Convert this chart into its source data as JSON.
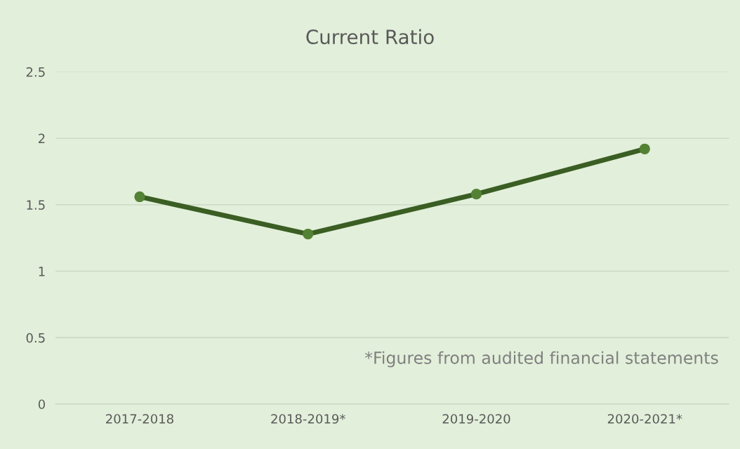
{
  "chart_data": {
    "type": "line",
    "title": "Current Ratio",
    "categories": [
      "2017-2018",
      "2018-2019*",
      "2019-2020",
      "2020-2021*"
    ],
    "series": [
      {
        "color": "#3a5e23",
        "values": [
          1.56,
          1.28,
          1.58,
          1.92
        ]
      }
    ],
    "marker": "circle",
    "line_style": "solid",
    "ylim": [
      0,
      2.5
    ],
    "yticks": [
      0,
      0.5,
      1,
      1.5,
      2,
      2.5
    ],
    "grid": "y",
    "legend": false,
    "annotations": [
      "*Figures from audited financial statements"
    ]
  }
}
